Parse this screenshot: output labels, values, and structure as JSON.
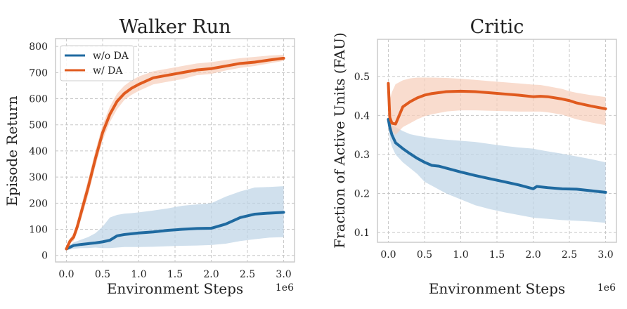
{
  "chart_data": [
    {
      "type": "line",
      "title": "Walker Run",
      "xlabel": "Environment Steps",
      "ylabel": "Episode Return",
      "x_multiplier_label": "1e6",
      "xlim": [
        -0.15,
        3.15
      ],
      "ylim": [
        -25,
        830
      ],
      "xticks": [
        0.0,
        0.5,
        1.0,
        1.5,
        2.0,
        2.5,
        3.0
      ],
      "xtick_labels": [
        "0.0",
        "0.5",
        "1.0",
        "1.5",
        "2.0",
        "2.5",
        "3.0"
      ],
      "yticks": [
        0,
        100,
        200,
        300,
        400,
        500,
        600,
        700,
        800
      ],
      "ytick_labels": [
        "0",
        "100",
        "200",
        "300",
        "400",
        "500",
        "600",
        "700",
        "800"
      ],
      "grid": true,
      "legend": {
        "placement": "top-left",
        "entries": [
          "w/o DA",
          "w/ DA"
        ]
      },
      "series": [
        {
          "name": "w/o DA",
          "color": "#1f6aa0",
          "band_color": "#bcd3e6",
          "x": [
            0.0,
            0.1,
            0.2,
            0.3,
            0.4,
            0.5,
            0.6,
            0.7,
            0.8,
            0.9,
            1.0,
            1.2,
            1.4,
            1.6,
            1.8,
            2.0,
            2.2,
            2.4,
            2.6,
            2.8,
            3.0
          ],
          "y": [
            25,
            38,
            42,
            45,
            48,
            52,
            58,
            75,
            80,
            83,
            86,
            90,
            96,
            100,
            103,
            104,
            120,
            145,
            158,
            162,
            165
          ],
          "lower": [
            20,
            25,
            28,
            28,
            30,
            28,
            28,
            30,
            32,
            32,
            32,
            33,
            35,
            37,
            38,
            40,
            45,
            55,
            62,
            68,
            70
          ],
          "upper": [
            30,
            50,
            60,
            70,
            85,
            110,
            145,
            155,
            160,
            162,
            165,
            172,
            180,
            190,
            195,
            200,
            225,
            245,
            260,
            262,
            265
          ]
        },
        {
          "name": "w/ DA",
          "color": "#e05a1e",
          "band_color": "#f6cdb9",
          "x": [
            0.0,
            0.05,
            0.1,
            0.15,
            0.2,
            0.3,
            0.4,
            0.5,
            0.6,
            0.7,
            0.8,
            0.9,
            1.0,
            1.2,
            1.4,
            1.6,
            1.8,
            2.0,
            2.2,
            2.4,
            2.6,
            2.8,
            3.0
          ],
          "y": [
            25,
            55,
            70,
            110,
            160,
            260,
            370,
            470,
            540,
            590,
            620,
            640,
            655,
            680,
            690,
            700,
            710,
            715,
            725,
            735,
            740,
            748,
            755
          ],
          "lower": [
            20,
            45,
            55,
            90,
            135,
            230,
            340,
            440,
            510,
            560,
            595,
            615,
            630,
            655,
            665,
            675,
            690,
            695,
            708,
            718,
            725,
            735,
            745
          ],
          "upper": [
            30,
            65,
            85,
            130,
            185,
            290,
            400,
            500,
            570,
            620,
            650,
            670,
            685,
            705,
            715,
            725,
            735,
            740,
            748,
            755,
            760,
            765,
            768
          ]
        }
      ]
    },
    {
      "type": "line",
      "title": "Critic",
      "xlabel": "Environment Steps",
      "ylabel": "Fraction of Active Units (FAU)",
      "x_multiplier_label": "1e6",
      "xlim": [
        -0.15,
        3.15
      ],
      "ylim": [
        0.075,
        0.595
      ],
      "xticks": [
        0.0,
        0.5,
        1.0,
        1.5,
        2.0,
        2.5,
        3.0
      ],
      "xtick_labels": [
        "0.0",
        "0.5",
        "1.0",
        "1.5",
        "2.0",
        "2.5",
        "3.0"
      ],
      "yticks": [
        0.1,
        0.2,
        0.3,
        0.4,
        0.5
      ],
      "ytick_labels": [
        "0.1",
        "0.2",
        "0.3",
        "0.4",
        "0.5"
      ],
      "grid": true,
      "legend": null,
      "series": [
        {
          "name": "w/o DA",
          "color": "#1f6aa0",
          "band_color": "#bcd3e6",
          "x": [
            0.0,
            0.02,
            0.05,
            0.1,
            0.2,
            0.3,
            0.4,
            0.5,
            0.6,
            0.7,
            0.8,
            1.0,
            1.2,
            1.4,
            1.6,
            1.8,
            2.0,
            2.05,
            2.2,
            2.4,
            2.6,
            2.8,
            3.0
          ],
          "y": [
            0.39,
            0.37,
            0.35,
            0.33,
            0.315,
            0.302,
            0.29,
            0.28,
            0.272,
            0.27,
            0.265,
            0.255,
            0.246,
            0.238,
            0.23,
            0.222,
            0.212,
            0.218,
            0.215,
            0.212,
            0.211,
            0.207,
            0.203
          ],
          "lower": [
            0.37,
            0.34,
            0.32,
            0.3,
            0.28,
            0.265,
            0.25,
            0.23,
            0.22,
            0.21,
            0.2,
            0.185,
            0.17,
            0.16,
            0.152,
            0.145,
            0.138,
            0.137,
            0.135,
            0.132,
            0.13,
            0.128,
            0.125
          ],
          "upper": [
            0.4,
            0.39,
            0.375,
            0.37,
            0.36,
            0.352,
            0.348,
            0.345,
            0.342,
            0.34,
            0.338,
            0.335,
            0.332,
            0.327,
            0.322,
            0.318,
            0.315,
            0.313,
            0.308,
            0.302,
            0.295,
            0.288,
            0.28
          ]
        },
        {
          "name": "w/ DA",
          "color": "#e05a1e",
          "band_color": "#f6cdb9",
          "x": [
            0.0,
            0.02,
            0.05,
            0.1,
            0.15,
            0.2,
            0.3,
            0.4,
            0.5,
            0.6,
            0.8,
            1.0,
            1.2,
            1.4,
            1.6,
            1.8,
            2.0,
            2.1,
            2.2,
            2.4,
            2.5,
            2.6,
            2.8,
            3.0
          ],
          "y": [
            0.482,
            0.395,
            0.38,
            0.378,
            0.4,
            0.422,
            0.435,
            0.445,
            0.452,
            0.456,
            0.461,
            0.462,
            0.461,
            0.458,
            0.455,
            0.452,
            0.448,
            0.449,
            0.448,
            0.442,
            0.438,
            0.432,
            0.424,
            0.417
          ],
          "lower": [
            0.45,
            0.38,
            0.36,
            0.35,
            0.36,
            0.37,
            0.38,
            0.39,
            0.398,
            0.403,
            0.41,
            0.413,
            0.413,
            0.412,
            0.411,
            0.41,
            0.41,
            0.41,
            0.408,
            0.402,
            0.396,
            0.39,
            0.382,
            0.375
          ],
          "upper": [
            0.49,
            0.44,
            0.46,
            0.48,
            0.485,
            0.49,
            0.495,
            0.497,
            0.497,
            0.497,
            0.496,
            0.494,
            0.491,
            0.488,
            0.485,
            0.482,
            0.479,
            0.478,
            0.475,
            0.468,
            0.462,
            0.458,
            0.452,
            0.447
          ]
        }
      ]
    }
  ]
}
